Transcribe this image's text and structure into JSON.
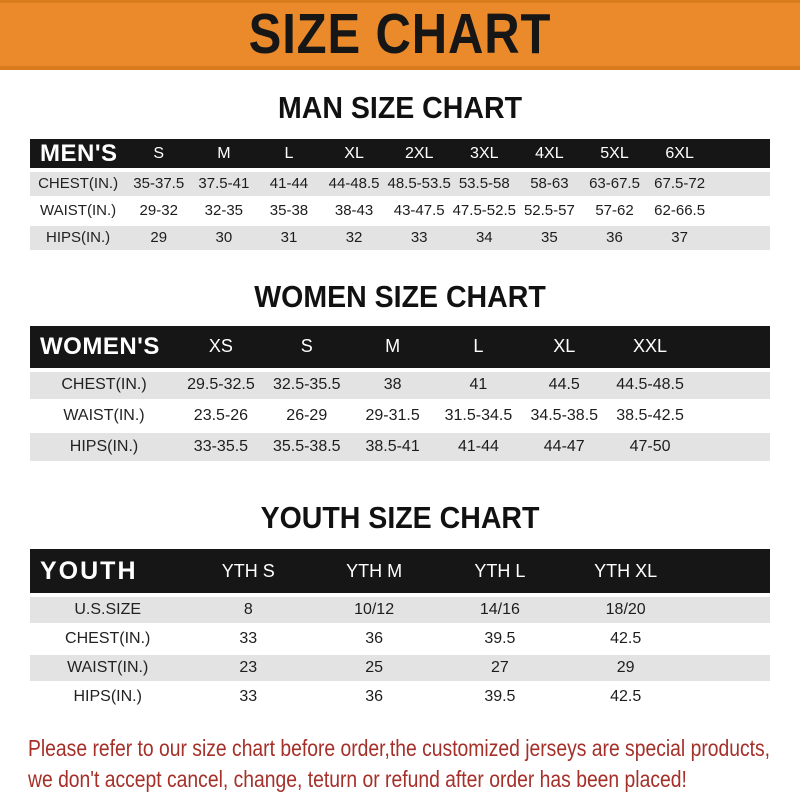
{
  "banner": {
    "title": "SIZE CHART"
  },
  "sections": [
    {
      "heading": "MAN SIZE CHART",
      "header_label": "MEN'S",
      "columns": [
        "S",
        "M",
        "L",
        "XL",
        "2XL",
        "3XL",
        "4XL",
        "5XL",
        "6XL"
      ],
      "rows": [
        {
          "label": "CHEST(IN.)",
          "values": [
            "35-37.5",
            "37.5-41",
            "41-44",
            "44-48.5",
            "48.5-53.5",
            "53.5-58",
            "58-63",
            "63-67.5",
            "67.5-72"
          ]
        },
        {
          "label": "WAIST(IN.)",
          "values": [
            "29-32",
            "32-35",
            "35-38",
            "38-43",
            "43-47.5",
            "47.5-52.5",
            "52.5-57",
            "57-62",
            "62-66.5"
          ]
        },
        {
          "label": "HIPS(IN.)",
          "values": [
            "29",
            "30",
            "31",
            "32",
            "33",
            "34",
            "35",
            "36",
            "37"
          ]
        }
      ]
    },
    {
      "heading": "WOMEN SIZE CHART",
      "header_label": "WOMEN'S",
      "columns": [
        "XS",
        "S",
        "M",
        "L",
        "XL",
        "XXL"
      ],
      "rows": [
        {
          "label": "CHEST(IN.)",
          "values": [
            "29.5-32.5",
            "32.5-35.5",
            "38",
            "41",
            "44.5",
            "44.5-48.5"
          ]
        },
        {
          "label": "WAIST(IN.)",
          "values": [
            "23.5-26",
            "26-29",
            "29-31.5",
            "31.5-34.5",
            "34.5-38.5",
            "38.5-42.5"
          ]
        },
        {
          "label": "HIPS(IN.)",
          "values": [
            "33-35.5",
            "35.5-38.5",
            "38.5-41",
            "41-44",
            "44-47",
            "47-50"
          ]
        }
      ]
    },
    {
      "heading": "YOUTH SIZE CHART",
      "header_label": "YOUTH",
      "columns": [
        "YTH S",
        "YTH M",
        "YTH L",
        "YTH XL"
      ],
      "rows": [
        {
          "label": "U.S.SIZE",
          "values": [
            "8",
            "10/12",
            "14/16",
            "18/20"
          ]
        },
        {
          "label": "CHEST(IN.)",
          "values": [
            "33",
            "36",
            "39.5",
            "42.5"
          ]
        },
        {
          "label": "WAIST(IN.)",
          "values": [
            "23",
            "25",
            "27",
            "29"
          ]
        },
        {
          "label": "HIPS(IN.)",
          "values": [
            "33",
            "36",
            "39.5",
            "42.5"
          ]
        }
      ]
    }
  ],
  "footer": {
    "line1": "Please refer to our size chart before order,the customized jerseys are special products,",
    "line2": "we don't accept cancel, change, teturn or refund after order has been placed!"
  },
  "colors": {
    "banner_bg": "#EB8A2A",
    "banner_text": "#161616",
    "bar_bg": "#161616",
    "bar_text": "#FFFFFF",
    "row_alt_bg": "#E3E3E3",
    "footer_text": "#A5302A"
  },
  "chart_data": [
    {
      "type": "table",
      "title": "MAN SIZE CHART",
      "columns": [
        "MEN'S",
        "S",
        "M",
        "L",
        "XL",
        "2XL",
        "3XL",
        "4XL",
        "5XL",
        "6XL"
      ],
      "rows": [
        [
          "CHEST(IN.)",
          "35-37.5",
          "37.5-41",
          "41-44",
          "44-48.5",
          "48.5-53.5",
          "53.5-58",
          "58-63",
          "63-67.5",
          "67.5-72"
        ],
        [
          "WAIST(IN.)",
          "29-32",
          "32-35",
          "35-38",
          "38-43",
          "43-47.5",
          "47.5-52.5",
          "52.5-57",
          "57-62",
          "62-66.5"
        ],
        [
          "HIPS(IN.)",
          "29",
          "30",
          "31",
          "32",
          "33",
          "34",
          "35",
          "36",
          "37"
        ]
      ]
    },
    {
      "type": "table",
      "title": "WOMEN SIZE CHART",
      "columns": [
        "WOMEN'S",
        "XS",
        "S",
        "M",
        "L",
        "XL",
        "XXL"
      ],
      "rows": [
        [
          "CHEST(IN.)",
          "29.5-32.5",
          "32.5-35.5",
          "38",
          "41",
          "44.5",
          "44.5-48.5"
        ],
        [
          "WAIST(IN.)",
          "23.5-26",
          "26-29",
          "29-31.5",
          "31.5-34.5",
          "34.5-38.5",
          "38.5-42.5"
        ],
        [
          "HIPS(IN.)",
          "33-35.5",
          "35.5-38.5",
          "38.5-41",
          "41-44",
          "44-47",
          "47-50"
        ]
      ]
    },
    {
      "type": "table",
      "title": "YOUTH SIZE CHART",
      "columns": [
        "YOUTH",
        "YTH S",
        "YTH M",
        "YTH L",
        "YTH XL"
      ],
      "rows": [
        [
          "U.S.SIZE",
          "8",
          "10/12",
          "14/16",
          "18/20"
        ],
        [
          "CHEST(IN.)",
          "33",
          "36",
          "39.5",
          "42.5"
        ],
        [
          "WAIST(IN.)",
          "23",
          "25",
          "27",
          "29"
        ],
        [
          "HIPS(IN.)",
          "33",
          "36",
          "39.5",
          "42.5"
        ]
      ]
    }
  ]
}
